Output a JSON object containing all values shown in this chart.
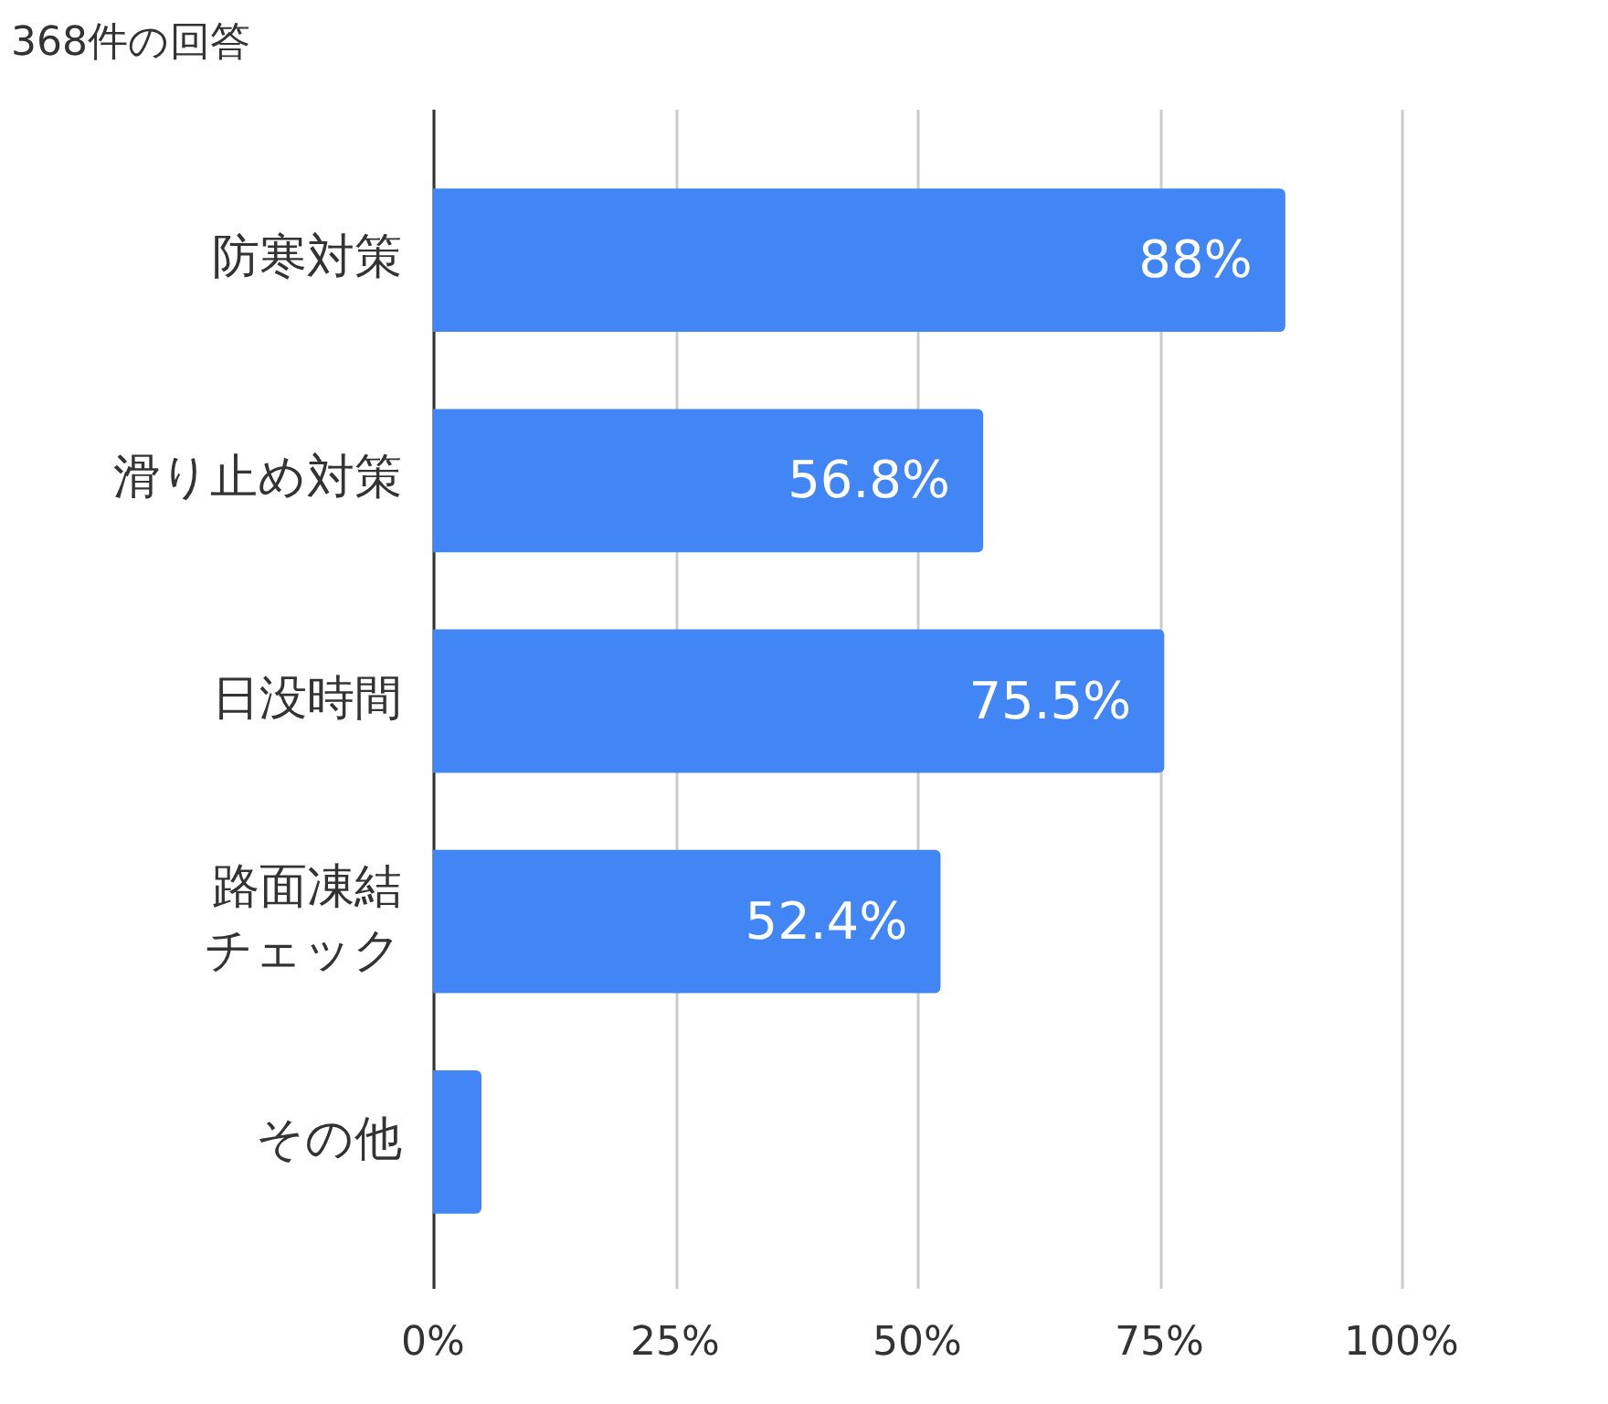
{
  "chart_data": {
    "type": "bar",
    "orientation": "horizontal",
    "title": "368件の回答",
    "categories": [
      "防寒対策",
      "滑り止め対策",
      "日没時間",
      "路面凍結チェック",
      "その他"
    ],
    "values": [
      88,
      56.8,
      75.5,
      52.4,
      5
    ],
    "color": "#4285f4",
    "value_labels": [
      "88%",
      "56.8%",
      "75.5%",
      "52.4%",
      null
    ],
    "xlim": [
      0,
      100
    ],
    "xticks": [
      {
        "value": 0,
        "label": "0%"
      },
      {
        "value": 25,
        "label": "25%"
      },
      {
        "value": 50,
        "label": "50%"
      },
      {
        "value": 75,
        "label": "75%"
      },
      {
        "value": 100,
        "label": "100%"
      }
    ],
    "grid": "x",
    "legend": false
  }
}
